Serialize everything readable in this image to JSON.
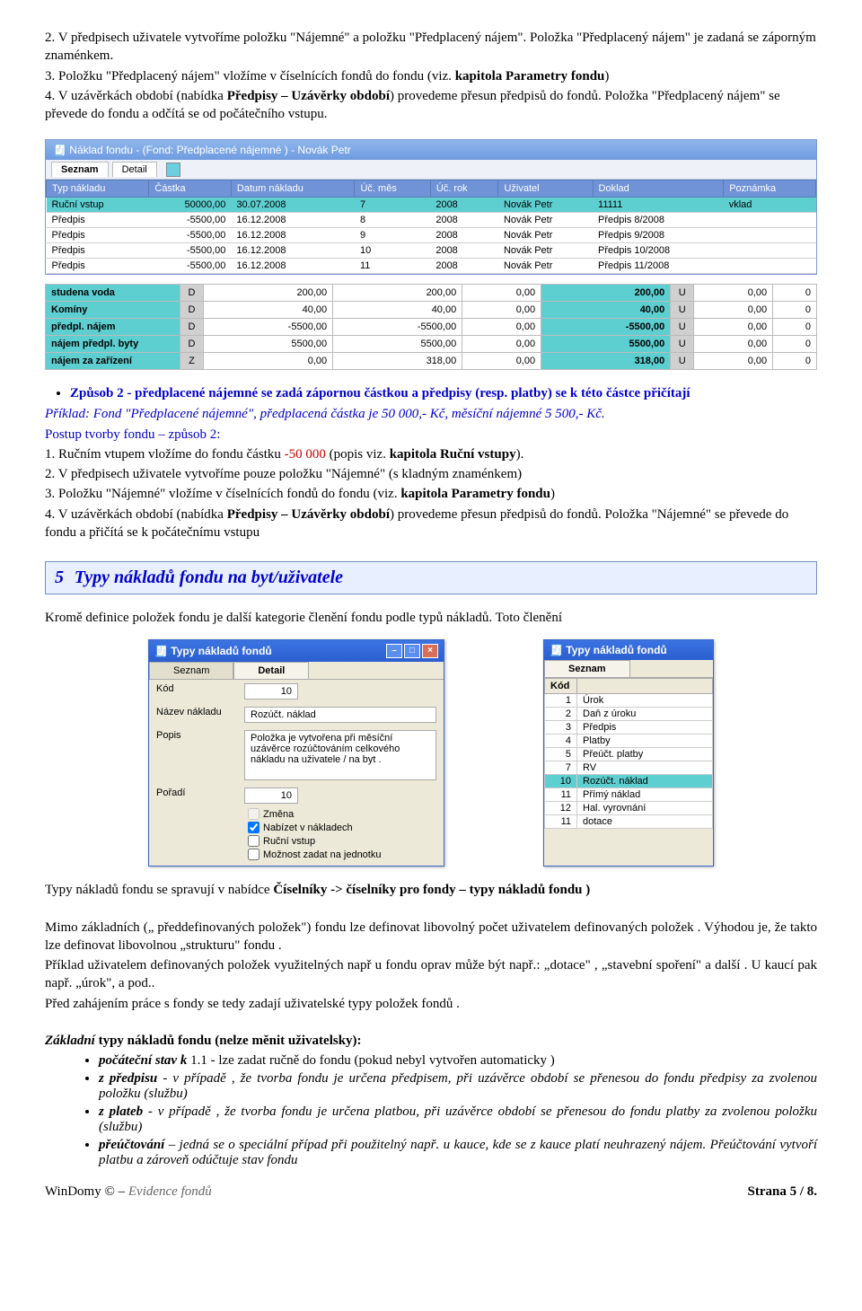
{
  "para1_a": "2.  V předpisech uživatele vytvoříme položku \"Nájemné\" a položku \"Předplacený nájem\". Položka \"Předplacený nájem\" je zadaná se záporným znaménkem.",
  "para1_b": "3.  Položku \"Předplacený nájem\" vložíme v číselnících fondů do fondu (viz. ",
  "para1_b_bold": "kapitola Parametry fondu",
  "para1_b_end": ")",
  "para1_c": "4.  V uzávěrkách období (nabídka ",
  "para1_c_bold": "Předpisy – Uzávěrky období",
  "para1_c_end": ") provedeme přesun předpisů do fondů. Položka \"Předplacený nájem\" se převede do fondu a odčítá se od počátečního vstupu.",
  "ss1_title": "Náklad fondu -  (Fond: Předplacené nájemné ) - Novák Petr",
  "ss1_tab1": "Seznam",
  "ss1_tab2": "Detail",
  "ss1_headers": [
    "Typ nákladu",
    "Částka",
    "Datum nákladu",
    "Úč. měs",
    "Úč. rok",
    "Uživatel",
    "Doklad",
    "Poznámka"
  ],
  "ss1_rows": [
    {
      "teal": true,
      "c": [
        "Ruční vstup",
        "50000,00",
        "30.07.2008",
        "7",
        "2008",
        "Novák Petr",
        "11111",
        "vklad"
      ]
    },
    {
      "c": [
        "Předpis",
        "-5500,00",
        "16.12.2008",
        "8",
        "2008",
        "Novák Petr",
        "Předpis 8/2008",
        ""
      ]
    },
    {
      "c": [
        "Předpis",
        "-5500,00",
        "16.12.2008",
        "9",
        "2008",
        "Novák Petr",
        "Předpis 9/2008",
        ""
      ]
    },
    {
      "c": [
        "Předpis",
        "-5500,00",
        "16.12.2008",
        "10",
        "2008",
        "Novák Petr",
        "Předpis 10/2008",
        ""
      ]
    },
    {
      "c": [
        "Předpis",
        "-5500,00",
        "16.12.2008",
        "11",
        "2008",
        "Novák Petr",
        "Předpis 11/2008",
        ""
      ]
    }
  ],
  "g2_rows": [
    {
      "name": "studena voda",
      "d": "D",
      "v": [
        "200,00",
        "200,00",
        "0,00",
        "200,00",
        "U",
        "0,00",
        "0"
      ]
    },
    {
      "name": "Komíny",
      "d": "D",
      "v": [
        "40,00",
        "40,00",
        "0,00",
        "40,00",
        "U",
        "0,00",
        "0"
      ]
    },
    {
      "name": "předpl. nájem",
      "d": "D",
      "v": [
        "-5500,00",
        "-5500,00",
        "0,00",
        "-5500,00",
        "U",
        "0,00",
        "0"
      ]
    },
    {
      "name": "nájem předpl. byty",
      "d": "D",
      "v": [
        "5500,00",
        "5500,00",
        "0,00",
        "5500,00",
        "U",
        "0,00",
        "0"
      ]
    },
    {
      "name": "nájem za zařízení",
      "d": "Z",
      "v": [
        "0,00",
        "318,00",
        "0,00",
        "318,00",
        "U",
        "0,00",
        "0"
      ]
    }
  ],
  "bullet_lead": "Způsob 2 - předplacené nájemné se zadá zápornou částkou a předpisy (resp. platby) se k této částce přičítají",
  "ex_line": "Příklad: Fond \"Předplacené nájemné\", předplacená částka je 50 000,- Kč, měsíční nájemné 5 500,- Kč.",
  "postup2": "Postup tvorby fondu – způsob 2:",
  "n1a": "1.  Ručním vtupem vložíme do fondu částku  ",
  "n1b": "-50 000",
  "n1c": " (popis viz. ",
  "n1d": "kapitola Ruční vstupy",
  "n1e": ").",
  "n2": "2.  V předpisech uživatele vytvoříme pouze položku \"Nájemné\" (s kladným znaménkem)",
  "n3a": "3.  Položku \"Nájemné\" vložíme v číselnících fondů do fondu (viz. ",
  "n3b": "kapitola Parametry fondu",
  "n3c": ")",
  "n4a": "4.  V uzávěrkách období (nabídka ",
  "n4b": "Předpisy – Uzávěrky období",
  "n4c": ") provedeme přesun předpisů do fondů. Položka \"Nájemné\" se převede do fondu a přičítá se k počátečnímu vstupu",
  "section_num": "5",
  "section_title": "Typy nákladů fondu na byt/uživatele",
  "after_sec": "Kromě definice položek fondu je další kategorie členění fondu podle typů nákladů. Toto členění",
  "win1_title": "Typy nákladů fondů",
  "win1_tabA": "Seznam",
  "win1_tabB": "Detail",
  "w1_kod_l": "Kód",
  "w1_kod_v": "10",
  "w1_naz_l": "Název nákladu",
  "w1_naz_v": "Rozúčt. náklad",
  "w1_pop_l": "Popis",
  "w1_pop_v": "Položka je vytvořena při měsíční uzávěrce rozúčtováním celkového nákladu na uživatele / na byt .",
  "w1_por_l": "Pořadí",
  "w1_por_v": "10",
  "w1_chk1": "Změna",
  "w1_chk2": "Nabízet v nákladech",
  "w1_chk3": "Ruční vstup",
  "w1_chk4": "Možnost zadat na jednotku",
  "win2_title": "Typy nákladů fondů",
  "win2_tab": "Seznam",
  "w2_h1": "Kód",
  "w2_h2": "",
  "w2_rows": [
    [
      "1",
      "Úrok"
    ],
    [
      "2",
      "Daň z úroku"
    ],
    [
      "3",
      "Předpis"
    ],
    [
      "4",
      "Platby"
    ],
    [
      "5",
      "Přeúčt. platby"
    ],
    [
      "7",
      "RV"
    ],
    [
      "10",
      "Rozúčt. náklad"
    ],
    [
      "11",
      "Přímý náklad"
    ],
    [
      "12",
      "Hal. vyrovnání"
    ],
    [
      "11",
      "dotace"
    ]
  ],
  "w2_hl_index": 6,
  "p_after1a": "Typy nákladů fondu se spravují v nabídce ",
  "p_after1b": "Číselníky -> číselníky pro fondy – typy nákladů fondu )",
  "p_mimo": "Mimo základních („ předdefinovaných položek\") fondu lze definovat libovolný počet uživatelem definovaných položek . Výhodou je, že takto lze definovat libovolnou „strukturu\" fondu .",
  "p_prik": "Příklad uživatelem definovaných položek využitelných např u fondu oprav může být např.: „dotace\" ,  „stavební spoření\" a další .   U kaucí pak např.  „úrok\", a pod..",
  "p_pred": "Před zahájením práce s fondy se tedy zadají uživatelské typy položek fondů .",
  "zakl_lead_a": "Základní",
  "zakl_lead_b": " typy nákladů fondu  (nelze měnit uživatelsky)",
  "zakl_lead_c": ":",
  "sb1_l": "počáteční stav k",
  "sb1_t": " 1.1  - lze zadat ručně do fondu  (pokud nebyl vytvořen automaticky )",
  "sb2_l": "z předpisu",
  "sb2_t": "  -  v případě , že tvorba fondu je určena předpisem, při uzávěrce období se přenesou do fondu předpisy za zvolenou položku (službu)",
  "sb3_l": "z plateb",
  "sb3_t": "  -  v případě , že tvorba fondu je určena platbou, při uzávěrce období se přenesou do fondu platby za zvolenou položku (službu)",
  "sb4_l": "přeúčtování",
  "sb4_t": " – jedná se o speciální případ při použitelný např. u kauce, kde se z kauce platí neuhrazený nájem. Přeúčtování vytvoří platbu a zároveň odúčtuje stav fondu",
  "footer_left_a": "WinDomy ©  –  ",
  "footer_left_b": "Evidence fondů",
  "footer_right": "Strana 5 / 8."
}
